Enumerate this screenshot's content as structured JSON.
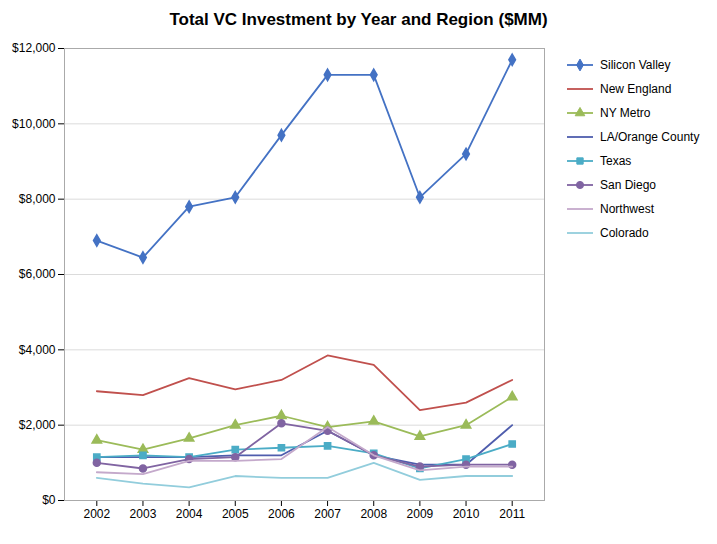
{
  "chart_data": {
    "type": "line",
    "title": "Total VC Investment by Year and Region ($MM)",
    "x": [
      2002,
      2003,
      2004,
      2005,
      2006,
      2007,
      2008,
      2009,
      2010,
      2011
    ],
    "xlim": [
      2001.3,
      2011.7
    ],
    "xticks": [
      2002,
      2003,
      2004,
      2005,
      2006,
      2007,
      2008,
      2009,
      2010,
      2011
    ],
    "ylim": [
      0,
      12000
    ],
    "yticks": [
      {
        "value": 0,
        "label": "$0"
      },
      {
        "value": 2000,
        "label": "$2,000"
      },
      {
        "value": 4000,
        "label": "$4,000"
      },
      {
        "value": 6000,
        "label": "$6,000"
      },
      {
        "value": 8000,
        "label": "$8,000"
      },
      {
        "value": 10000,
        "label": "$10,000"
      },
      {
        "value": 12000,
        "label": "$12,000"
      }
    ],
    "grid": true,
    "legend": "right",
    "series": [
      {
        "name": "Silicon Valley",
        "color": "#4472C4",
        "marker": "diamond",
        "values": [
          6900,
          6450,
          7800,
          8050,
          9700,
          11300,
          11300,
          8050,
          9200,
          11700
        ]
      },
      {
        "name": "New England",
        "color": "#C0504D",
        "values": [
          2900,
          2800,
          3250,
          2950,
          3200,
          3850,
          3600,
          2400,
          2600,
          3200
        ]
      },
      {
        "name": "NY Metro",
        "color": "#9BBB59",
        "marker": "triangle",
        "values": [
          1600,
          1350,
          1650,
          2000,
          2250,
          1950,
          2100,
          1700,
          2000,
          2750
        ]
      },
      {
        "name": "LA/Orange County",
        "color": "#4F5DAD",
        "values": [
          1150,
          1150,
          1150,
          1200,
          1200,
          1850,
          1200,
          950,
          950,
          2000
        ]
      },
      {
        "name": "Texas",
        "color": "#4BACC6",
        "marker": "square",
        "values": [
          1150,
          1200,
          1150,
          1350,
          1400,
          1450,
          1250,
          850,
          1100,
          1500
        ]
      },
      {
        "name": "San Diego",
        "color": "#8064A2",
        "marker": "circle",
        "values": [
          1000,
          850,
          1100,
          1150,
          2050,
          1850,
          1200,
          900,
          950,
          950
        ]
      },
      {
        "name": "Northwest",
        "color": "#C4A9CB",
        "values": [
          750,
          700,
          1050,
          1050,
          1100,
          1950,
          1200,
          800,
          900,
          900
        ]
      },
      {
        "name": "Colorado",
        "color": "#92CDDC",
        "values": [
          600,
          450,
          350,
          650,
          600,
          600,
          1000,
          550,
          650,
          650
        ]
      }
    ]
  }
}
